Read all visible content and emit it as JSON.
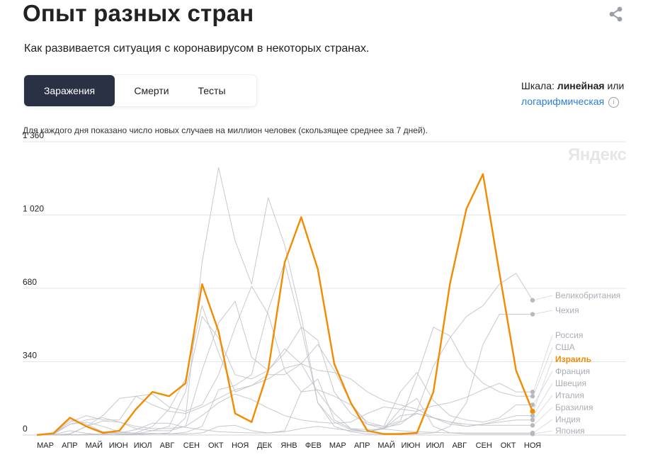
{
  "header": {
    "title": "Опыт разных стран",
    "subtitle": "Как развивается ситуация с коронавирусом в некоторых странах.",
    "share_icon": "share-icon"
  },
  "tabs": [
    {
      "label": "Заражения",
      "active": true
    },
    {
      "label": "Смерти",
      "active": false
    },
    {
      "label": "Тесты",
      "active": false
    }
  ],
  "scale": {
    "prefix": "Шкала: ",
    "linear": "линейная",
    "or": " или",
    "log": "логарифмическая",
    "info_icon": "info-icon"
  },
  "caption": "Для каждого дня показано число новых случаев на миллион человек (скользящее среднее за 7 дней).",
  "watermark": "Яндекс",
  "colors": {
    "highlight": "#f28b00",
    "others": "#bcc0c6",
    "grid": "#e3e5e8",
    "tab_active": "#2b3144",
    "link": "#2b7ed6"
  },
  "chart_data": {
    "type": "line",
    "y_ticks": [
      "0",
      "340",
      "680",
      "1 020",
      "1 360"
    ],
    "ylim": [
      0,
      1360
    ],
    "x_ticks": [
      "МАР",
      "АПР",
      "МАЙ",
      "ИЮН",
      "ИЮЛ",
      "АВГ",
      "СЕН",
      "ОКТ",
      "НОЯ",
      "ДЕК",
      "ЯНВ",
      "ФЕВ",
      "МАР",
      "АПР",
      "МАЙ",
      "ИЮН",
      "ИЮЛ",
      "АВГ",
      "СЕН",
      "ОКТ",
      "НОЯ"
    ],
    "highlight": "Израиль",
    "series": [
      {
        "name": "Великобритания",
        "last": 625,
        "values": [
          0,
          5,
          50,
          60,
          40,
          15,
          8,
          6,
          5,
          12,
          40,
          210,
          230,
          280,
          580,
          800,
          500,
          150,
          60,
          25,
          15,
          35,
          50,
          110,
          320,
          450,
          550,
          600,
          700,
          750,
          625
        ]
      },
      {
        "name": "Чехия",
        "last": 560,
        "values": [
          0,
          2,
          20,
          8,
          2,
          2,
          2,
          5,
          10,
          80,
          800,
          1240,
          900,
          700,
          1100,
          880,
          550,
          150,
          40,
          15,
          5,
          3,
          3,
          5,
          10,
          40,
          150,
          420,
          560,
          560,
          560
        ]
      },
      {
        "name": "Россия",
        "last": 200,
        "values": [
          0,
          0,
          5,
          40,
          65,
          60,
          40,
          30,
          30,
          40,
          90,
          150,
          190,
          165,
          125,
          90,
          70,
          60,
          55,
          60,
          100,
          130,
          120,
          110,
          135,
          150,
          175,
          210,
          240,
          200,
          200
        ]
      },
      {
        "name": "США",
        "last": 180,
        "values": [
          0,
          2,
          60,
          90,
          70,
          70,
          180,
          190,
          130,
          110,
          140,
          280,
          500,
          690,
          560,
          300,
          200,
          210,
          180,
          140,
          60,
          40,
          65,
          270,
          500,
          460,
          320,
          240,
          200,
          180,
          180
        ]
      },
      {
        "name": "Франция",
        "last": 140,
        "values": [
          0,
          3,
          70,
          50,
          15,
          10,
          10,
          40,
          120,
          260,
          600,
          380,
          200,
          230,
          280,
          280,
          330,
          420,
          300,
          150,
          50,
          40,
          200,
          290,
          160,
          90,
          70,
          60,
          80,
          140,
          140
        ]
      },
      {
        "name": "Швеция",
        "last": 90,
        "values": [
          0,
          3,
          50,
          70,
          80,
          60,
          30,
          20,
          20,
          40,
          300,
          520,
          620,
          360,
          300,
          380,
          500,
          440,
          200,
          100,
          50,
          30,
          60,
          100,
          80,
          60,
          40,
          50,
          70,
          90,
          90
        ]
      },
      {
        "name": "Италия",
        "last": 70,
        "values": [
          0,
          10,
          80,
          40,
          15,
          5,
          5,
          20,
          40,
          200,
          550,
          450,
          280,
          260,
          300,
          400,
          330,
          200,
          100,
          30,
          15,
          30,
          90,
          100,
          80,
          50,
          40,
          50,
          60,
          70,
          70
        ]
      },
      {
        "name": "Бразилия",
        "last": 45,
        "values": [
          0,
          1,
          5,
          40,
          90,
          170,
          180,
          140,
          110,
          100,
          130,
          170,
          210,
          230,
          260,
          310,
          330,
          300,
          290,
          260,
          200,
          160,
          140,
          120,
          80,
          60,
          50,
          45,
          45,
          45,
          45
        ]
      },
      {
        "name": "Индия",
        "last": 10,
        "values": [
          0,
          0,
          0,
          2,
          5,
          10,
          25,
          55,
          55,
          35,
          25,
          15,
          12,
          10,
          10,
          20,
          200,
          260,
          70,
          30,
          25,
          28,
          20,
          15,
          12,
          10,
          10,
          10,
          10,
          10,
          10
        ]
      },
      {
        "name": "Япония",
        "last": 5,
        "values": [
          0,
          0,
          2,
          3,
          2,
          2,
          5,
          8,
          5,
          5,
          10,
          40,
          45,
          20,
          10,
          15,
          30,
          40,
          30,
          20,
          15,
          30,
          120,
          170,
          40,
          10,
          5,
          5,
          5,
          5,
          5
        ]
      },
      {
        "name": "Израиль",
        "last": 110,
        "values": [
          0,
          8,
          80,
          40,
          10,
          20,
          120,
          200,
          180,
          240,
          700,
          480,
          100,
          60,
          300,
          800,
          1010,
          770,
          330,
          150,
          20,
          5,
          5,
          10,
          200,
          700,
          1050,
          1210,
          750,
          300,
          110
        ]
      }
    ]
  }
}
